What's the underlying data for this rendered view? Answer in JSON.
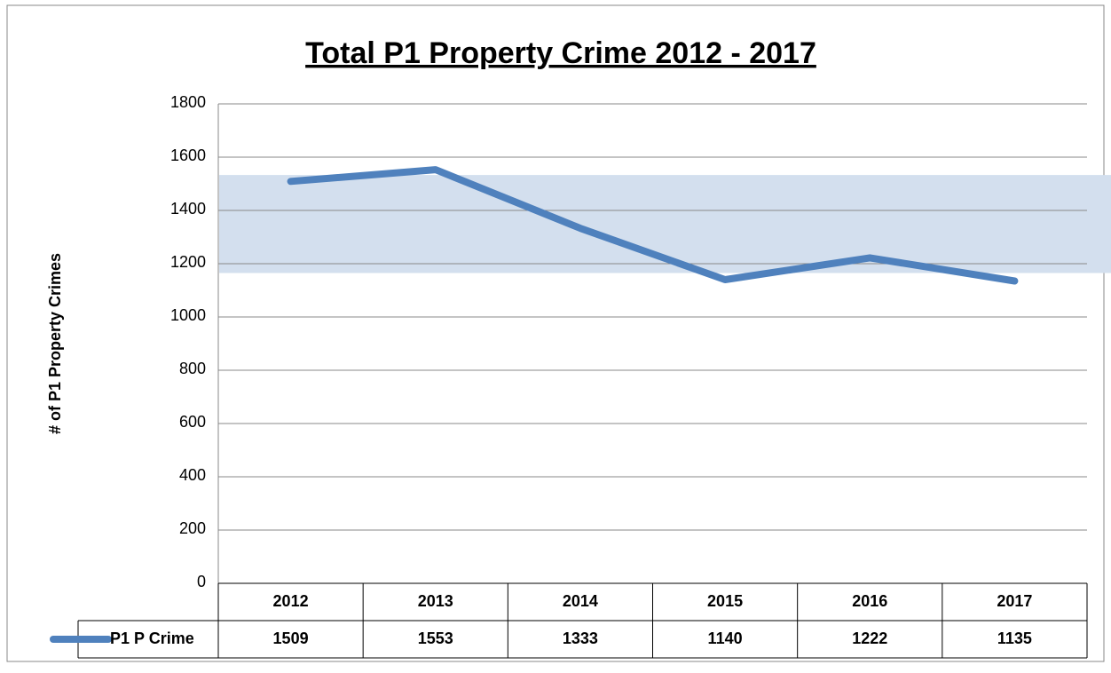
{
  "chart_data": {
    "type": "line",
    "title": "Total P1 Property Crime 2012 - 2017",
    "y_label": "# of P1 Property Crimes",
    "categories": [
      "2012",
      "2013",
      "2014",
      "2015",
      "2016",
      "2017"
    ],
    "series": [
      {
        "name": "P1 P Crime",
        "color": "#4f81bd",
        "values": [
          1509,
          1553,
          1333,
          1140,
          1222,
          1135
        ]
      }
    ],
    "ylim": [
      0,
      1800
    ],
    "yticks": [
      0,
      200,
      400,
      600,
      800,
      1000,
      1200,
      1400,
      1600,
      1800
    ],
    "grid": true,
    "band": [
      1165,
      1533
    ],
    "band_color": "#d3dfee"
  }
}
